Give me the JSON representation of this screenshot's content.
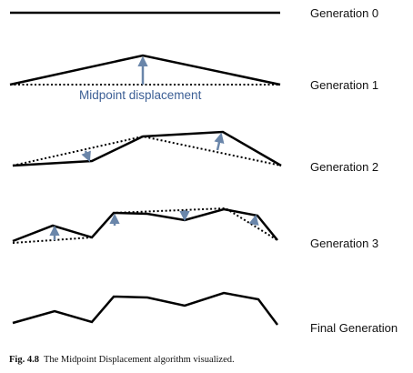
{
  "diagram": {
    "colors": {
      "line": "#000000",
      "arrow": "#6a86aa",
      "annotation_text": "#3c5f95"
    },
    "generations": [
      {
        "label": "Generation 0"
      },
      {
        "label": "Generation 1"
      },
      {
        "label": "Generation 2"
      },
      {
        "label": "Generation 3"
      },
      {
        "label": "Final Generation"
      }
    ],
    "annotation": {
      "label": "Midpoint displacement"
    }
  },
  "caption": {
    "figure_number": "Fig. 4.8",
    "text": "The Midpoint Displacement algorithm visualized."
  }
}
